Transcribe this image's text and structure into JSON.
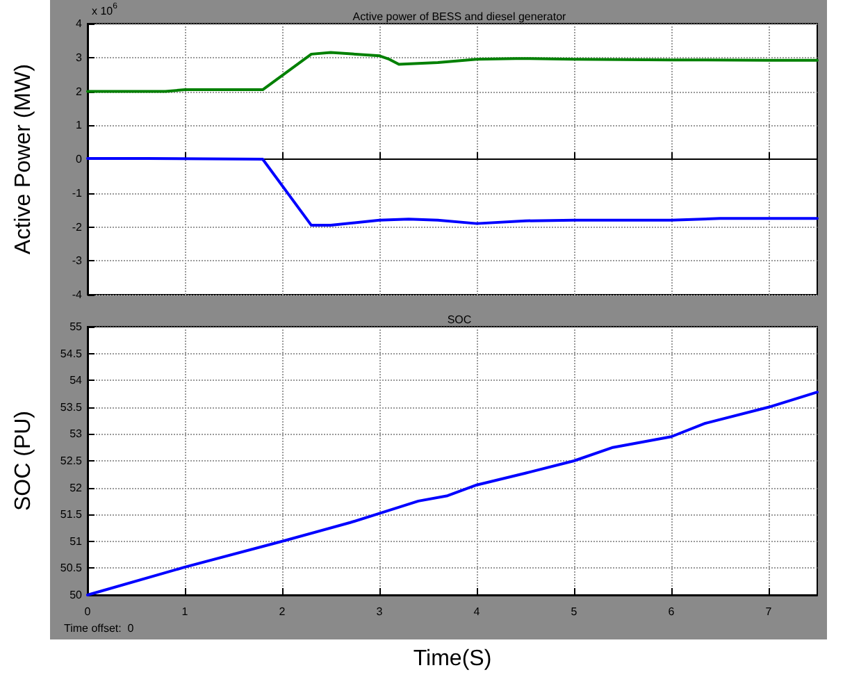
{
  "chart_data": [
    {
      "type": "line",
      "title": "Active power of BESS and diesel generator",
      "ylabel": "Active Power (MW)",
      "annotations": [
        "x 10$^{6}$"
      ],
      "xlim": [
        0,
        7.5
      ],
      "xticks": [
        0,
        1,
        2,
        3,
        4,
        5,
        6,
        7
      ],
      "ylim": [
        -4,
        4
      ],
      "yticks": [
        -4,
        -3,
        -2,
        -1,
        0,
        1,
        2,
        3,
        4
      ],
      "grid": true,
      "tick_labels": "y",
      "marker": "none",
      "line_style": "solid",
      "series": [
        {
          "color": "#008000",
          "x": [
            0,
            0.8,
            1.0,
            1.8,
            2.3,
            2.5,
            3.0,
            3.1,
            3.2,
            3.6,
            4.0,
            4.4,
            4.5,
            5.0,
            6.0,
            7.0,
            7.5
          ],
          "values": [
            2.0,
            2.0,
            2.05,
            2.05,
            3.1,
            3.15,
            3.05,
            2.95,
            2.8,
            2.85,
            2.95,
            2.97,
            2.97,
            2.95,
            2.93,
            2.92,
            2.92
          ]
        },
        {
          "color": "#0000ff",
          "x": [
            0,
            0.6,
            1.8,
            2.3,
            2.5,
            3.0,
            3.3,
            3.6,
            4.0,
            4.5,
            5.0,
            6.0,
            6.5,
            7.0,
            7.5
          ],
          "values": [
            0.02,
            0.02,
            0.0,
            -1.95,
            -1.95,
            -1.8,
            -1.77,
            -1.8,
            -1.9,
            -1.82,
            -1.8,
            -1.8,
            -1.75,
            -1.75,
            -1.75
          ]
        }
      ]
    },
    {
      "type": "line",
      "title": "SOC",
      "xlabel": "Time(S)",
      "ylabel": "SOC (PU)",
      "annotations": [
        "Time offset:  0"
      ],
      "xlim": [
        0,
        7.5
      ],
      "xticks": [
        0,
        1,
        2,
        3,
        4,
        5,
        6,
        7
      ],
      "ylim": [
        50,
        55
      ],
      "yticks": [
        50,
        50.5,
        51,
        51.5,
        52,
        52.5,
        53,
        53.5,
        54,
        54.5,
        55
      ],
      "grid": true,
      "marker": "none",
      "line_style": "solid",
      "series": [
        {
          "color": "#0000ff",
          "x": [
            0,
            1,
            2,
            2.7,
            3,
            3.4,
            3.7,
            4,
            4.5,
            5,
            5.4,
            6,
            6.35,
            7,
            7.5
          ],
          "values": [
            50,
            50.52,
            51.0,
            51.35,
            51.52,
            51.75,
            51.85,
            52.05,
            52.27,
            52.5,
            52.75,
            52.95,
            53.2,
            53.5,
            53.78
          ]
        }
      ]
    }
  ]
}
